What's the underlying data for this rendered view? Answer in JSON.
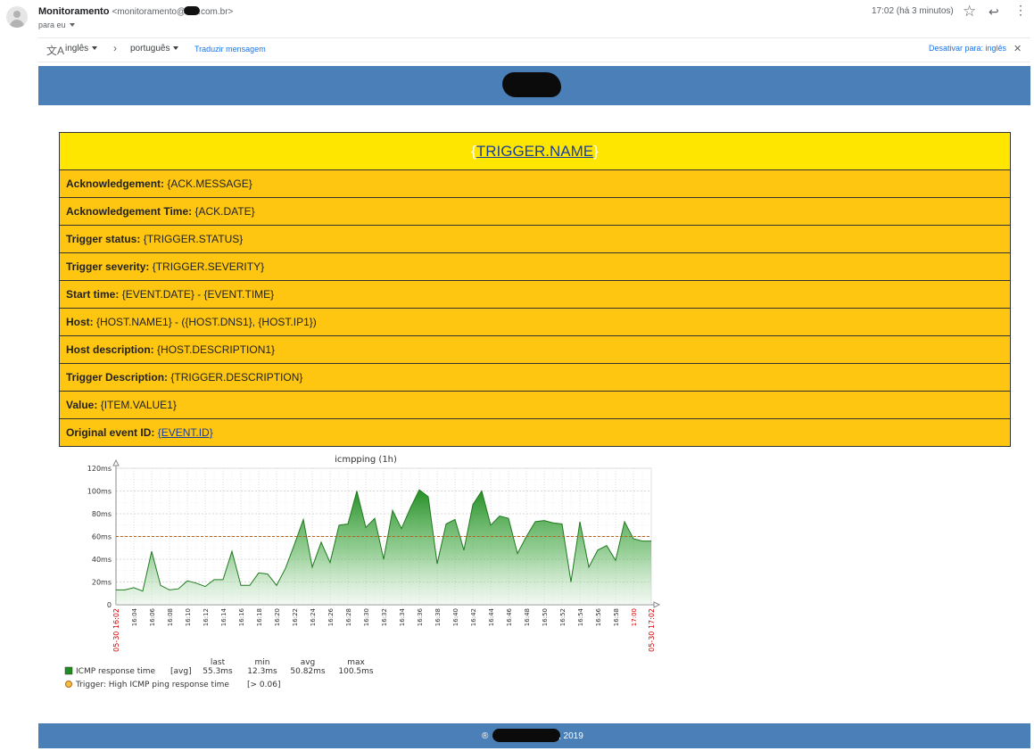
{
  "header": {
    "sender_name": "Monitoramento",
    "sender_email_prefix": "<monitoramento@",
    "sender_email_suffix": ".com.br>",
    "recipient": "para eu",
    "time": "17:02 (há 3 minutos)"
  },
  "translate_bar": {
    "source_lang": "inglês",
    "target_lang": "português",
    "translate_link": "Traduzir mensagem",
    "disable_link": "Desativar para: inglês"
  },
  "trigger": {
    "title_open": "{",
    "title": "TRIGGER.NAME",
    "title_close": "}",
    "rows": [
      {
        "label": "Acknowledgement:",
        "value": "{ACK.MESSAGE}"
      },
      {
        "label": "Acknowledgement Time:",
        "value": "{ACK.DATE}"
      },
      {
        "label": "Trigger status:",
        "value": "{TRIGGER.STATUS}"
      },
      {
        "label": "Trigger severity:",
        "value": "{TRIGGER.SEVERITY}"
      },
      {
        "label": "Start time:",
        "value": "{EVENT.DATE} - {EVENT.TIME}"
      },
      {
        "label": "Host:",
        "value": "{HOST.NAME1} - ({HOST.DNS1}, {HOST.IP1})"
      },
      {
        "label": "Host description:",
        "value": "{HOST.DESCRIPTION1}"
      },
      {
        "label": "Trigger Description:",
        "value": "{TRIGGER.DESCRIPTION}"
      },
      {
        "label": "Value:",
        "value": "{ITEM.VALUE1}"
      }
    ],
    "event_label": "Original event ID:",
    "event_value": "{EVENT.ID}"
  },
  "footer": {
    "prefix": "®",
    "year": ", 2019"
  },
  "chart_data": {
    "type": "area",
    "title": "icmpping (1h)",
    "y_unit": "ms",
    "ylim": [
      0,
      120
    ],
    "yticks": [
      "0",
      "20ms",
      "40ms",
      "60ms",
      "80ms",
      "100ms",
      "120ms"
    ],
    "x_start": "05-30 16:02",
    "x_end": "05-30 17:02",
    "xticks": [
      "16:04",
      "16:06",
      "16:08",
      "16:10",
      "16:12",
      "16:14",
      "16:16",
      "16:18",
      "16:20",
      "16:22",
      "16:24",
      "16:26",
      "16:28",
      "16:30",
      "16:32",
      "16:34",
      "16:36",
      "16:38",
      "16:40",
      "16:42",
      "16:44",
      "16:46",
      "16:48",
      "16:50",
      "16:52",
      "16:54",
      "16:56",
      "16:58",
      "17:00",
      "17:02"
    ],
    "highlight_ticks": [
      "17:00"
    ],
    "grid": true,
    "series": [
      {
        "name": "ICMP response time",
        "color": "#1e8c1e",
        "x_minutes": [
          0,
          1,
          2,
          3,
          4,
          5,
          6,
          7,
          8,
          9,
          10,
          11,
          12,
          13,
          14,
          15,
          16,
          17,
          18,
          19,
          20,
          21,
          22,
          23,
          24,
          25,
          26,
          27,
          28,
          29,
          30,
          31,
          32,
          33,
          34,
          35,
          36,
          37,
          38,
          39,
          40,
          41,
          42,
          43,
          44,
          45,
          46,
          47,
          48,
          49,
          50,
          51,
          52,
          53,
          54,
          55,
          56,
          57,
          58,
          59,
          60
        ],
        "values": [
          13,
          13,
          15,
          12,
          47,
          17,
          13,
          14,
          21,
          19,
          16,
          22,
          22,
          47,
          17,
          17,
          28,
          27,
          17,
          32,
          53,
          75,
          33,
          55,
          37,
          70,
          71,
          100,
          68,
          76,
          40,
          83,
          67,
          85,
          101,
          95,
          36,
          71,
          75,
          48,
          88,
          100,
          70,
          78,
          76,
          45,
          60,
          73,
          74,
          72,
          71,
          20,
          73,
          33,
          48,
          52,
          39,
          73,
          58,
          56,
          56
        ]
      }
    ],
    "threshold": {
      "name": "Trigger: High ICMP ping response time",
      "value": 60,
      "condition": "[> 0.06]",
      "color": "#e27c2b"
    },
    "legend": {
      "headers": [
        "last",
        "min",
        "avg",
        "max"
      ],
      "agg": "[avg]",
      "stats": [
        "55.3ms",
        "12.3ms",
        "50.82ms",
        "100.5ms"
      ]
    }
  }
}
